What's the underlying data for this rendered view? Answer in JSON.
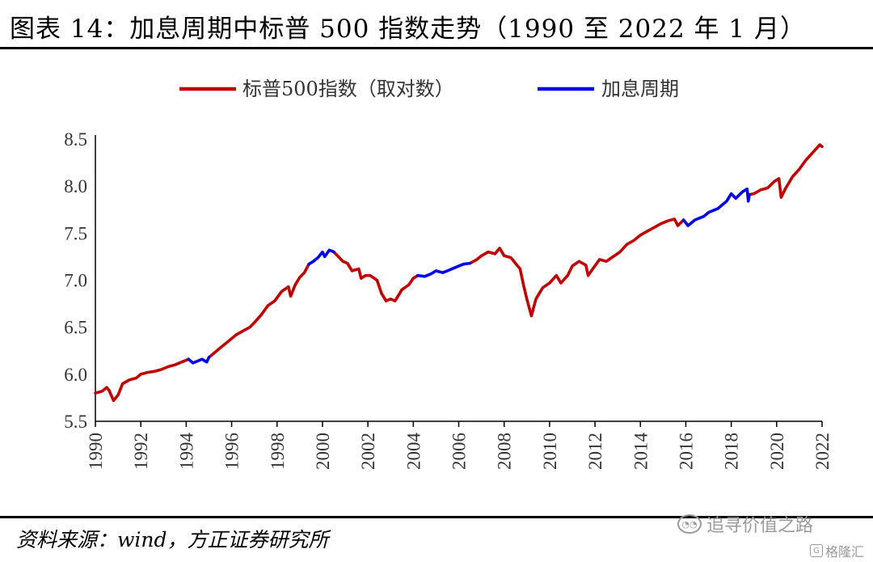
{
  "title": "图表 14：加息周期中标普 500 指数走势（1990 至 2022 年 1 月）",
  "source": "资料来源：wind，方正证券研究所",
  "watermark": {
    "text": "追寻价值之路",
    "icon": "wechat-icon"
  },
  "badge": {
    "text": "格隆汇",
    "icon": "gelonghui-logo-icon"
  },
  "colors": {
    "sp500": "#c00000",
    "hike": "#0000ee",
    "axis": "#000000"
  },
  "chart_data": {
    "type": "line",
    "title": "",
    "xlabel": "",
    "ylabel": "",
    "xlim": [
      1990,
      2022
    ],
    "ylim": [
      5.5,
      8.5
    ],
    "y_ticks": [
      "5.5",
      "6.0",
      "6.5",
      "7.0",
      "7.5",
      "8.0",
      "8.5"
    ],
    "x_ticks": [
      "1990",
      "1992",
      "1994",
      "1996",
      "1998",
      "2000",
      "2002",
      "2004",
      "2006",
      "2008",
      "2010",
      "2012",
      "2014",
      "2016",
      "2018",
      "2020",
      "2022"
    ],
    "legend": {
      "placement": "top"
    },
    "series": [
      {
        "name": "标普500指数（取对数）",
        "color": "#c00000",
        "points": [
          [
            1990.0,
            5.8
          ],
          [
            1990.3,
            5.82
          ],
          [
            1990.5,
            5.86
          ],
          [
            1990.6,
            5.83
          ],
          [
            1990.8,
            5.72
          ],
          [
            1991.0,
            5.78
          ],
          [
            1991.2,
            5.9
          ],
          [
            1991.5,
            5.94
          ],
          [
            1991.8,
            5.96
          ],
          [
            1992.0,
            6.0
          ],
          [
            1992.3,
            6.02
          ],
          [
            1992.6,
            6.03
          ],
          [
            1992.9,
            6.05
          ],
          [
            1993.2,
            6.08
          ],
          [
            1993.5,
            6.1
          ],
          [
            1993.8,
            6.13
          ],
          [
            1994.0,
            6.15
          ],
          [
            1994.1,
            6.16
          ],
          [
            1995.0,
            6.18
          ],
          [
            1995.3,
            6.24
          ],
          [
            1995.6,
            6.3
          ],
          [
            1995.9,
            6.36
          ],
          [
            1996.2,
            6.42
          ],
          [
            1996.5,
            6.46
          ],
          [
            1996.8,
            6.5
          ],
          [
            1997.0,
            6.55
          ],
          [
            1997.3,
            6.63
          ],
          [
            1997.6,
            6.73
          ],
          [
            1997.9,
            6.78
          ],
          [
            1998.2,
            6.88
          ],
          [
            1998.5,
            6.93
          ],
          [
            1998.6,
            6.83
          ],
          [
            1998.8,
            6.95
          ],
          [
            1999.0,
            7.03
          ],
          [
            1999.2,
            7.08
          ],
          [
            1999.4,
            7.17
          ],
          [
            2000.5,
            7.3
          ],
          [
            2000.7,
            7.25
          ],
          [
            2000.9,
            7.2
          ],
          [
            2001.1,
            7.18
          ],
          [
            2001.3,
            7.1
          ],
          [
            2001.6,
            7.12
          ],
          [
            2001.7,
            7.02
          ],
          [
            2001.9,
            7.05
          ],
          [
            2002.1,
            7.05
          ],
          [
            2002.4,
            7.0
          ],
          [
            2002.6,
            6.86
          ],
          [
            2002.8,
            6.78
          ],
          [
            2003.0,
            6.8
          ],
          [
            2003.2,
            6.78
          ],
          [
            2003.5,
            6.9
          ],
          [
            2003.8,
            6.95
          ],
          [
            2004.0,
            7.02
          ],
          [
            2004.2,
            7.05
          ],
          [
            2006.5,
            7.18
          ],
          [
            2006.8,
            7.22
          ],
          [
            2007.0,
            7.26
          ],
          [
            2007.3,
            7.3
          ],
          [
            2007.6,
            7.28
          ],
          [
            2007.8,
            7.34
          ],
          [
            2008.0,
            7.26
          ],
          [
            2008.3,
            7.24
          ],
          [
            2008.5,
            7.18
          ],
          [
            2008.7,
            7.12
          ],
          [
            2008.85,
            6.95
          ],
          [
            2009.0,
            6.8
          ],
          [
            2009.2,
            6.62
          ],
          [
            2009.4,
            6.8
          ],
          [
            2009.7,
            6.92
          ],
          [
            2010.0,
            6.97
          ],
          [
            2010.3,
            7.05
          ],
          [
            2010.5,
            6.97
          ],
          [
            2010.8,
            7.05
          ],
          [
            2011.0,
            7.15
          ],
          [
            2011.3,
            7.2
          ],
          [
            2011.6,
            7.16
          ],
          [
            2011.7,
            7.05
          ],
          [
            2011.9,
            7.12
          ],
          [
            2012.2,
            7.22
          ],
          [
            2012.5,
            7.2
          ],
          [
            2012.8,
            7.25
          ],
          [
            2013.1,
            7.3
          ],
          [
            2013.4,
            7.38
          ],
          [
            2013.7,
            7.42
          ],
          [
            2014.0,
            7.48
          ],
          [
            2014.3,
            7.52
          ],
          [
            2014.6,
            7.56
          ],
          [
            2014.9,
            7.6
          ],
          [
            2015.2,
            7.63
          ],
          [
            2015.5,
            7.65
          ],
          [
            2015.65,
            7.58
          ],
          [
            2015.9,
            7.64
          ],
          [
            2018.8,
            7.91
          ],
          [
            2019.0,
            7.92
          ],
          [
            2019.3,
            7.96
          ],
          [
            2019.6,
            7.98
          ],
          [
            2019.9,
            8.05
          ],
          [
            2020.1,
            8.08
          ],
          [
            2020.2,
            7.88
          ],
          [
            2020.4,
            7.98
          ],
          [
            2020.7,
            8.1
          ],
          [
            2021.0,
            8.18
          ],
          [
            2021.3,
            8.28
          ],
          [
            2021.6,
            8.36
          ],
          [
            2021.9,
            8.44
          ],
          [
            2022.0,
            8.42
          ]
        ]
      },
      {
        "name": "加息周期",
        "color": "#0000ee",
        "segments": [
          [
            [
              1994.1,
              6.16
            ],
            [
              1994.3,
              6.12
            ],
            [
              1994.5,
              6.14
            ],
            [
              1994.7,
              6.16
            ],
            [
              1994.9,
              6.13
            ],
            [
              1995.0,
              6.18
            ]
          ],
          [
            [
              1999.4,
              7.17
            ],
            [
              1999.6,
              7.2
            ],
            [
              1999.8,
              7.24
            ],
            [
              2000.0,
              7.3
            ],
            [
              2000.1,
              7.25
            ],
            [
              2000.3,
              7.32
            ],
            [
              2000.5,
              7.3
            ]
          ],
          [
            [
              2004.2,
              7.05
            ],
            [
              2004.5,
              7.04
            ],
            [
              2004.8,
              7.07
            ],
            [
              2005.0,
              7.1
            ],
            [
              2005.3,
              7.08
            ],
            [
              2005.6,
              7.11
            ],
            [
              2005.9,
              7.14
            ],
            [
              2006.2,
              7.17
            ],
            [
              2006.5,
              7.18
            ]
          ],
          [
            [
              2015.9,
              7.64
            ],
            [
              2016.1,
              7.58
            ],
            [
              2016.4,
              7.64
            ],
            [
              2016.8,
              7.68
            ],
            [
              2017.0,
              7.72
            ],
            [
              2017.4,
              7.76
            ],
            [
              2017.8,
              7.84
            ],
            [
              2018.0,
              7.92
            ],
            [
              2018.2,
              7.87
            ],
            [
              2018.5,
              7.94
            ],
            [
              2018.7,
              7.97
            ],
            [
              2018.75,
              7.84
            ],
            [
              2018.8,
              7.91
            ]
          ]
        ]
      }
    ]
  }
}
